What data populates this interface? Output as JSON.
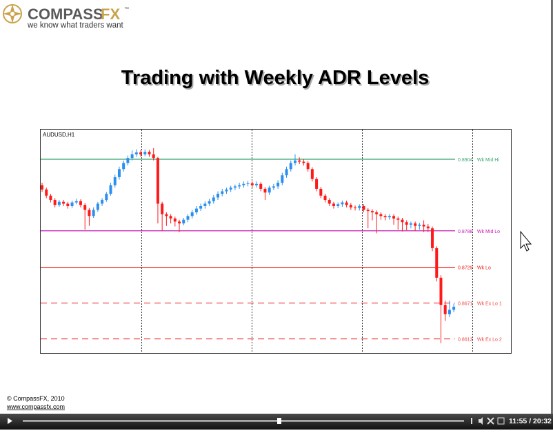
{
  "header": {
    "logo": "COMPASS",
    "logo_accent": "FX",
    "trademark": "™",
    "tagline": "we know what traders want"
  },
  "chart_data": {
    "type": "candlestick",
    "title": "Trading with Weekly ADR Levels",
    "symbol": "AUDUSD,H1",
    "up_color": "#2b8ff0",
    "down_color": "#ff1a1a",
    "ylim": [
      0.859,
      0.8952
    ],
    "open": [
      0.8862,
      0.8855,
      0.8845,
      0.8838,
      0.883,
      0.8835,
      0.8832,
      0.8828,
      0.8834,
      0.8836,
      0.883,
      0.8822,
      0.8812,
      0.8822,
      0.8832,
      0.8838,
      0.8848,
      0.8862,
      0.8875,
      0.8888,
      0.8898,
      0.8906,
      0.8912,
      0.8915,
      0.8912,
      0.8916,
      0.8912,
      0.8906,
      0.8832,
      0.8815,
      0.8812,
      0.8808,
      0.8803,
      0.88,
      0.8806,
      0.8812,
      0.8818,
      0.8824,
      0.8828,
      0.8832,
      0.8836,
      0.8842,
      0.8848,
      0.8852,
      0.8855,
      0.8858,
      0.886,
      0.8862,
      0.8864,
      0.8865,
      0.8862,
      0.8864,
      0.8856,
      0.885,
      0.8858,
      0.886,
      0.8866,
      0.8878,
      0.8888,
      0.8898,
      0.8902,
      0.89,
      0.8898,
      0.8888,
      0.8872,
      0.8856,
      0.8845,
      0.8838,
      0.8832,
      0.8828,
      0.8831,
      0.8834,
      0.883,
      0.8826,
      0.8825,
      0.8828,
      0.8822,
      0.882,
      0.8818,
      0.8815,
      0.8812,
      0.881,
      0.8812,
      0.8808,
      0.8806,
      0.8802,
      0.8798,
      0.88,
      0.8796,
      0.8798,
      0.8795,
      0.8792,
      0.876,
      0.8712,
      0.8668,
      0.8653,
      0.866
    ],
    "high": [
      0.8866,
      0.8858,
      0.8848,
      0.8841,
      0.8838,
      0.8838,
      0.8835,
      0.8837,
      0.884,
      0.8839,
      0.8833,
      0.8825,
      0.8826,
      0.8835,
      0.8841,
      0.8851,
      0.8866,
      0.8879,
      0.8892,
      0.8902,
      0.891,
      0.8918,
      0.892,
      0.8919,
      0.892,
      0.8919,
      0.8922,
      0.8908,
      0.8835,
      0.8818,
      0.8815,
      0.8811,
      0.8806,
      0.8809,
      0.8815,
      0.8822,
      0.8828,
      0.8832,
      0.8836,
      0.884,
      0.8846,
      0.8852,
      0.8856,
      0.8858,
      0.8861,
      0.8863,
      0.8866,
      0.8868,
      0.8869,
      0.8868,
      0.8868,
      0.8867,
      0.8859,
      0.8861,
      0.8864,
      0.887,
      0.8882,
      0.8892,
      0.8902,
      0.8912,
      0.8907,
      0.8904,
      0.8901,
      0.8891,
      0.8875,
      0.8859,
      0.8848,
      0.8841,
      0.8835,
      0.8834,
      0.8837,
      0.8837,
      0.8833,
      0.8829,
      0.8831,
      0.8831,
      0.8825,
      0.8823,
      0.8821,
      0.8818,
      0.8815,
      0.8815,
      0.8815,
      0.8811,
      0.8809,
      0.8805,
      0.8803,
      0.8803,
      0.8801,
      0.8805,
      0.8799,
      0.8795,
      0.8763,
      0.8716,
      0.8675,
      0.8675,
      0.867
    ],
    "low": [
      0.8851,
      0.8841,
      0.8834,
      0.8826,
      0.8827,
      0.8828,
      0.8824,
      0.8825,
      0.8831,
      0.8826,
      0.879,
      0.8796,
      0.8809,
      0.8819,
      0.8828,
      0.8835,
      0.8845,
      0.8858,
      0.8871,
      0.8884,
      0.8894,
      0.8902,
      0.8908,
      0.8908,
      0.8909,
      0.8908,
      0.8902,
      0.88,
      0.8788,
      0.8796,
      0.88,
      0.8795,
      0.8786,
      0.8797,
      0.8802,
      0.8808,
      0.8814,
      0.882,
      0.8824,
      0.8828,
      0.8832,
      0.8838,
      0.8844,
      0.8848,
      0.8851,
      0.8854,
      0.8856,
      0.8858,
      0.886,
      0.8858,
      0.8858,
      0.8852,
      0.8838,
      0.8846,
      0.8854,
      0.8856,
      0.8862,
      0.8874,
      0.8884,
      0.8894,
      0.8896,
      0.8894,
      0.8884,
      0.8868,
      0.8852,
      0.8841,
      0.8834,
      0.8828,
      0.8824,
      0.8825,
      0.8827,
      0.8826,
      0.8822,
      0.8821,
      0.8821,
      0.8818,
      0.8792,
      0.8805,
      0.8784,
      0.8806,
      0.8805,
      0.8806,
      0.8798,
      0.879,
      0.8787,
      0.8789,
      0.8792,
      0.8788,
      0.879,
      0.8786,
      0.8786,
      0.8755,
      0.8706,
      0.8606,
      0.8642,
      0.8648,
      0.8656
    ],
    "close": [
      0.8855,
      0.8845,
      0.8838,
      0.883,
      0.8835,
      0.8832,
      0.8828,
      0.8834,
      0.8836,
      0.883,
      0.8822,
      0.8812,
      0.8822,
      0.8832,
      0.8838,
      0.8848,
      0.8862,
      0.8875,
      0.8888,
      0.8898,
      0.8906,
      0.8912,
      0.8915,
      0.8912,
      0.8916,
      0.8912,
      0.8906,
      0.8832,
      0.8815,
      0.8812,
      0.8808,
      0.8803,
      0.88,
      0.8806,
      0.8812,
      0.8818,
      0.8824,
      0.8828,
      0.8832,
      0.8836,
      0.8842,
      0.8848,
      0.8852,
      0.8855,
      0.8858,
      0.886,
      0.8862,
      0.8864,
      0.8865,
      0.8862,
      0.8864,
      0.8856,
      0.885,
      0.8858,
      0.886,
      0.8866,
      0.8878,
      0.8888,
      0.8898,
      0.8902,
      0.89,
      0.8898,
      0.8888,
      0.8872,
      0.8856,
      0.8845,
      0.8838,
      0.8832,
      0.8828,
      0.8831,
      0.8834,
      0.883,
      0.8826,
      0.8825,
      0.8828,
      0.8822,
      0.882,
      0.8818,
      0.8815,
      0.8812,
      0.881,
      0.8812,
      0.8808,
      0.8806,
      0.8802,
      0.8798,
      0.88,
      0.8796,
      0.8798,
      0.8795,
      0.8792,
      0.876,
      0.8712,
      0.8668,
      0.8653,
      0.866,
      0.8665
    ],
    "levels": [
      {
        "value": 0.8904,
        "label": "Wk Mid Hi",
        "color": "#3ba772",
        "style": "solid"
      },
      {
        "value": 0.8788,
        "label": "Wk Mid Lo",
        "color": "#c41ab3",
        "style": "solid"
      },
      {
        "value": 0.8729,
        "label": "Wk Lo",
        "color": "#ee1c1c",
        "style": "solid"
      },
      {
        "value": 0.8671,
        "label": "Wk Ex Lo 1",
        "color": "#f0484a",
        "style": "dashed"
      },
      {
        "value": 0.8613,
        "label": "Wk Ex Lo 2",
        "color": "#f0484a",
        "style": "dashed"
      }
    ]
  },
  "footer": {
    "copyright": "© CompassFX, 2010",
    "url": "www.compassfx.com"
  },
  "player": {
    "time": "11:55 / 20:32"
  }
}
